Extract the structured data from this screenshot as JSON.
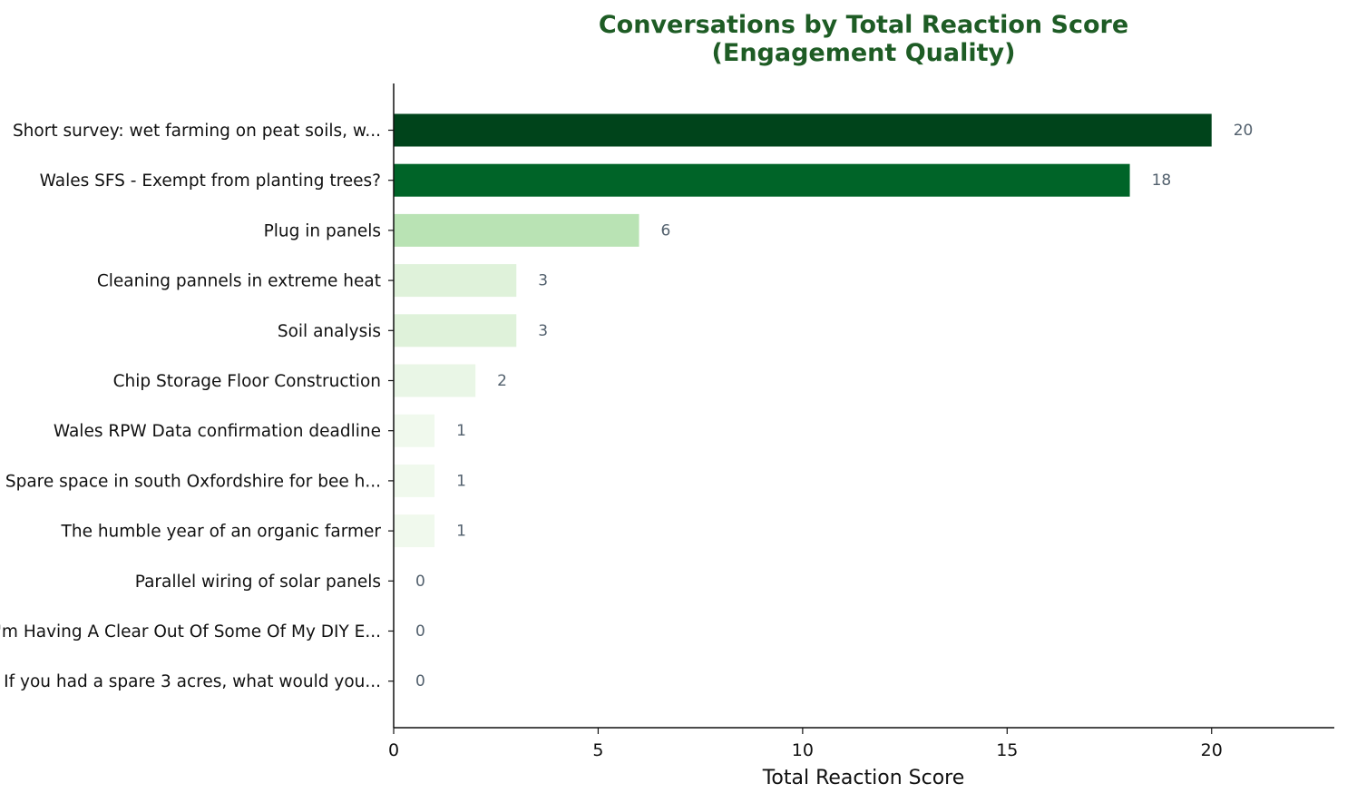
{
  "chart_data": {
    "type": "bar",
    "orientation": "horizontal",
    "title_lines": [
      "Conversations by Total Reaction Score",
      "(Engagement Quality)"
    ],
    "xlabel": "Total Reaction Score",
    "ylabel": "",
    "xlim": [
      0,
      23
    ],
    "xticks": [
      0,
      5,
      10,
      15,
      20
    ],
    "grid": false,
    "categories": [
      "Short survey: wet farming on peat soils, w...",
      "Wales SFS - Exempt from planting trees?",
      "Plug in panels",
      "Cleaning pannels in extreme heat",
      "Soil analysis",
      "Chip Storage Floor Construction",
      "Wales RPW Data confirmation deadline",
      "Spare space in south Oxfordshire for bee h...",
      "The humble year of an organic farmer",
      "Parallel wiring of solar panels",
      "I'm Having A Clear Out Of Some Of My DIY E...",
      "If you had a spare 3 acres, what would you..."
    ],
    "values": [
      20,
      18,
      6,
      3,
      3,
      2,
      1,
      1,
      1,
      0,
      0,
      0
    ],
    "bar_colors": [
      "#00441b",
      "#006428",
      "#b9e3b4",
      "#dff2da",
      "#dff2da",
      "#e9f6e6",
      "#f0f9ed",
      "#f0f9ed",
      "#f0f9ed",
      "#f7fcf5",
      "#f7fcf5",
      "#f7fcf5"
    ],
    "title_color": "#1e5c25",
    "value_label_color": "#52606d"
  }
}
